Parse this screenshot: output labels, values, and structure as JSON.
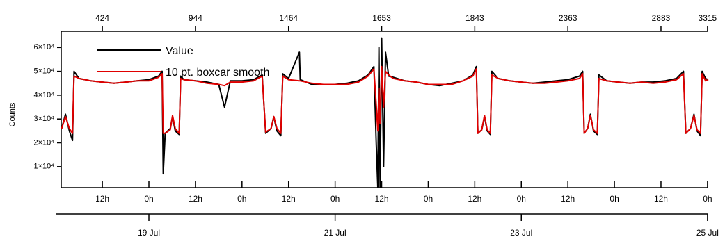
{
  "chart_data": {
    "type": "line",
    "ylabel": "Counts",
    "xlim": [
      1.4,
      168.2
    ],
    "ylim": [
      1200,
      66800
    ],
    "yticks": [
      {
        "value": 10000,
        "label": "1×10⁴"
      },
      {
        "value": 20000,
        "label": "2×10⁴"
      },
      {
        "value": 30000,
        "label": "3×10⁴"
      },
      {
        "value": 40000,
        "label": "4×10⁴"
      },
      {
        "value": 50000,
        "label": "5×10⁴"
      },
      {
        "value": 60000,
        "label": "6×10⁴"
      }
    ],
    "xticks": [
      {
        "value": 12,
        "label": "12h"
      },
      {
        "value": 24,
        "label": "0h"
      },
      {
        "value": 36,
        "label": "12h"
      },
      {
        "value": 48,
        "label": "0h"
      },
      {
        "value": 60,
        "label": "12h"
      },
      {
        "value": 72,
        "label": "0h"
      },
      {
        "value": 84,
        "label": "12h"
      },
      {
        "value": 96,
        "label": "0h"
      },
      {
        "value": 108,
        "label": "12h"
      },
      {
        "value": 120,
        "label": "0h"
      },
      {
        "value": 132,
        "label": "12h"
      },
      {
        "value": 144,
        "label": "0h"
      },
      {
        "value": 156,
        "label": "12h"
      },
      {
        "value": 168,
        "label": "0h"
      }
    ],
    "date_ticks": [
      {
        "value": 24,
        "label": "19 Jul"
      },
      {
        "value": 72,
        "label": "21 Jul"
      },
      {
        "value": 120,
        "label": "23 Jul"
      },
      {
        "value": 168,
        "label": "25 Jul"
      }
    ],
    "x2ticks": [
      {
        "value": 12,
        "label": "424"
      },
      {
        "value": 36,
        "label": "944"
      },
      {
        "value": 60,
        "label": "1464"
      },
      {
        "value": 84,
        "label": "1653"
      },
      {
        "value": 108,
        "label": "1843"
      },
      {
        "value": 132,
        "label": "2363"
      },
      {
        "value": 156,
        "label": "2883"
      },
      {
        "value": 168,
        "label": "3315"
      }
    ],
    "x": [
      1.5,
      2.5,
      3.5,
      4.3,
      4.7,
      6,
      9,
      12,
      15,
      18,
      21,
      24,
      26.5,
      27.4,
      27.7,
      28.2,
      29.5,
      30.1,
      30.8,
      31.8,
      32.2,
      33,
      36,
      39,
      42,
      43.5,
      45,
      48,
      51,
      53.2,
      54.1,
      55.5,
      56.2,
      57,
      58,
      58.5,
      60,
      62.8,
      63,
      66,
      69,
      72,
      75,
      78,
      80.5,
      82,
      82.6,
      83,
      83.3,
      83.6,
      84,
      84.5,
      85,
      85.8,
      87,
      90,
      93,
      96,
      99,
      102,
      105,
      107.5,
      108.4,
      108.8,
      109.8,
      110.5,
      111.2,
      112,
      112.4,
      114,
      117,
      120,
      123,
      126,
      129,
      132,
      135,
      135.8,
      136.2,
      137.1,
      137.8,
      138.6,
      139.6,
      140,
      142,
      145,
      148,
      151,
      154,
      157,
      160,
      161.8,
      162.4,
      163.6,
      164.5,
      165.3,
      166.2,
      166.6,
      167.5,
      168.2
    ],
    "legend": "upper left",
    "series": [
      {
        "name": "Value",
        "color": "#000000",
        "values": [
          26000,
          32000,
          25000,
          21000,
          50000,
          47000,
          46000,
          45500,
          45000,
          45500,
          46000,
          46500,
          48000,
          50000,
          7000,
          24000,
          26000,
          31000,
          25000,
          23500,
          48000,
          46500,
          46000,
          45500,
          44500,
          35000,
          46000,
          46000,
          46500,
          48500,
          24000,
          26000,
          31000,
          25000,
          23000,
          49000,
          47000,
          58000,
          46500,
          44500,
          44500,
          44500,
          45000,
          46000,
          48500,
          52000,
          20000,
          1200,
          60000,
          1200,
          64000,
          10000,
          58000,
          48000,
          47500,
          46000,
          45500,
          44500,
          44000,
          45000,
          46000,
          48500,
          52000,
          24000,
          25500,
          31000,
          25000,
          23500,
          50000,
          47000,
          46000,
          45500,
          45000,
          45500,
          46000,
          46500,
          48000,
          50000,
          24000,
          26000,
          32000,
          25000,
          23500,
          48500,
          46000,
          45500,
          45000,
          45500,
          45500,
          46000,
          47000,
          50000,
          24000,
          26000,
          32000,
          25000,
          23000,
          50000,
          47000,
          46500
        ]
      },
      {
        "name": "10 pt. boxcar smooth",
        "color": "#e00000",
        "values": [
          26000,
          31000,
          26000,
          24000,
          48000,
          47000,
          46000,
          45500,
          45000,
          45500,
          46000,
          46000,
          47500,
          49000,
          24000,
          24000,
          25500,
          31500,
          26000,
          24000,
          47000,
          46500,
          46000,
          45000,
          44500,
          44000,
          45500,
          45500,
          46000,
          48000,
          24500,
          26000,
          31000,
          26000,
          24000,
          48000,
          46500,
          46000,
          46000,
          45000,
          44500,
          44500,
          44500,
          45500,
          48000,
          51000,
          36000,
          25000,
          43000,
          28000,
          52000,
          35000,
          50000,
          48500,
          47000,
          46000,
          45500,
          44500,
          44500,
          44500,
          46000,
          48000,
          51000,
          24000,
          25500,
          31500,
          25500,
          24000,
          48500,
          47000,
          46000,
          45500,
          45000,
          45000,
          45500,
          46000,
          47000,
          49000,
          24000,
          26000,
          31500,
          25500,
          24000,
          47000,
          46000,
          45500,
          45000,
          45500,
          45000,
          45500,
          46500,
          49000,
          24000,
          26000,
          31500,
          25500,
          24000,
          49000,
          46000,
          46500
        ]
      }
    ]
  }
}
